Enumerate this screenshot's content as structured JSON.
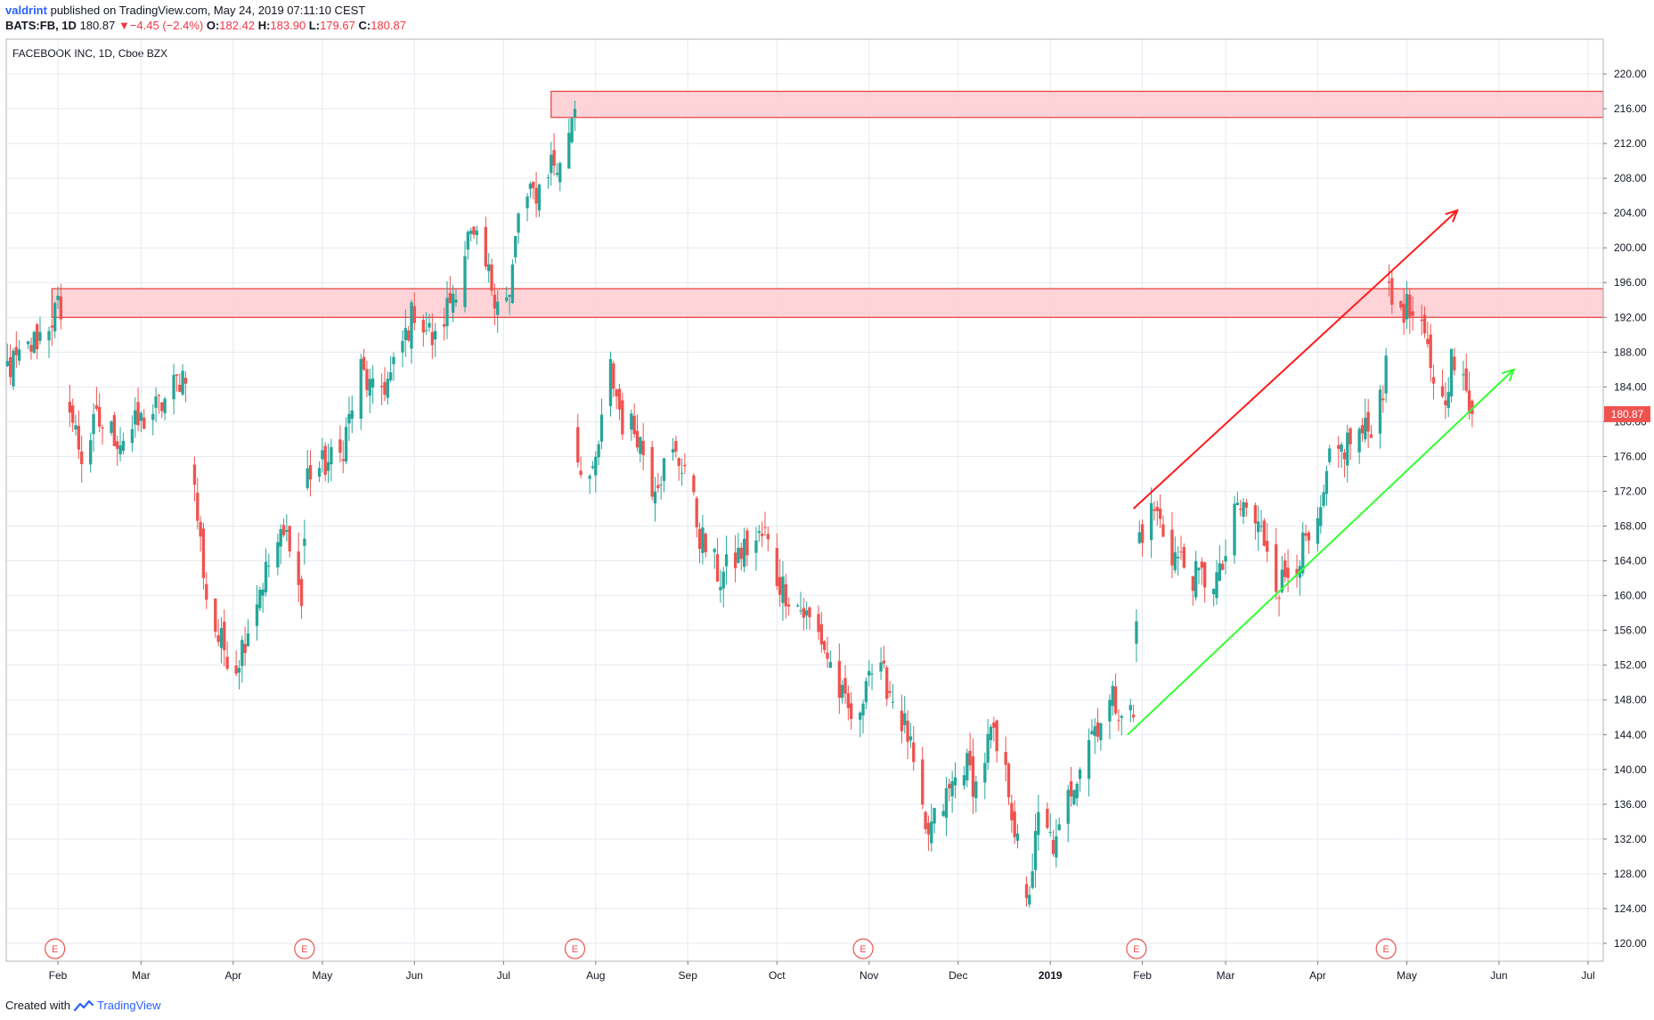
{
  "header": {
    "author": "valdrint",
    "published_text": "published on TradingView.com, May 24, 2019 07:11:10 CEST",
    "symbol": "BATS:FB, 1D",
    "last_price": "180.87",
    "change_arrow": "▼",
    "change": "−4.45 (−2.4%)",
    "open_label": "O:",
    "open": "182.42",
    "high_label": "H:",
    "high": "183.90",
    "low_label": "L:",
    "low": "179.67",
    "close_label": "C:",
    "close": "180.87"
  },
  "subtitle": "FACEBOOK INC, 1D, Cboe BZX",
  "footer": {
    "created_with": "Created with",
    "brand": "TradingView",
    "logo_icon": "tradingview-logo-icon"
  },
  "colors": {
    "up": "#26a69a",
    "down": "#ef5350",
    "zone_fill": "#ffcdd2",
    "zone_border": "#e53935",
    "red_arrow": "#ff1a1a",
    "green_arrow": "#33ff33",
    "grid": "#e6eaf0",
    "price_tag": "#ef5350"
  },
  "chart_data": {
    "type": "candlestick",
    "title": "FACEBOOK INC, 1D, Cboe BZX",
    "ylim": [
      118,
      222
    ],
    "y_ticks": [
      "220.00",
      "216.00",
      "212.00",
      "208.00",
      "204.00",
      "200.00",
      "196.00",
      "192.00",
      "188.00",
      "184.00",
      "180.00",
      "176.00",
      "172.00",
      "168.00",
      "164.00",
      "160.00",
      "156.00",
      "152.00",
      "148.00",
      "144.00",
      "140.00",
      "136.00",
      "132.00",
      "128.00",
      "124.00",
      "120.00"
    ],
    "x_ticks": [
      {
        "label": "Feb",
        "date": "2018-02-01"
      },
      {
        "label": "Mar",
        "date": "2018-03-01"
      },
      {
        "label": "Apr",
        "date": "2018-04-01"
      },
      {
        "label": "May",
        "date": "2018-05-01"
      },
      {
        "label": "Jun",
        "date": "2018-06-01"
      },
      {
        "label": "Jul",
        "date": "2018-07-01"
      },
      {
        "label": "Aug",
        "date": "2018-08-01"
      },
      {
        "label": "Sep",
        "date": "2018-09-01"
      },
      {
        "label": "Oct",
        "date": "2018-10-01"
      },
      {
        "label": "Nov",
        "date": "2018-11-01"
      },
      {
        "label": "Dec",
        "date": "2018-12-01"
      },
      {
        "label": "2019",
        "date": "2019-01-01"
      },
      {
        "label": "Feb",
        "date": "2019-02-01"
      },
      {
        "label": "Mar",
        "date": "2019-03-01"
      },
      {
        "label": "Apr",
        "date": "2019-04-01"
      },
      {
        "label": "May",
        "date": "2019-05-01"
      },
      {
        "label": "Jun",
        "date": "2019-06-01"
      },
      {
        "label": "Jul",
        "date": "2019-07-01"
      }
    ],
    "last_price_tag": "180.87",
    "earnings_markers": [
      {
        "label": "E",
        "date": "2018-01-31"
      },
      {
        "label": "E",
        "date": "2018-04-25"
      },
      {
        "label": "E",
        "date": "2018-07-25"
      },
      {
        "label": "E",
        "date": "2018-10-30"
      },
      {
        "label": "E",
        "date": "2019-01-30"
      },
      {
        "label": "E",
        "date": "2019-04-24"
      }
    ],
    "zones": [
      {
        "from_date": "2018-01-30",
        "price_low": 192.0,
        "price_high": 195.3
      },
      {
        "from_date": "2018-07-17",
        "price_low": 215.0,
        "price_high": 218.0
      }
    ],
    "arrows": [
      {
        "color": "red",
        "from": {
          "date": "2019-01-29",
          "price": 170.0
        },
        "to": {
          "date": "2019-05-18",
          "price": 204.3
        }
      },
      {
        "color": "green",
        "from": {
          "date": "2019-01-27",
          "price": 144.0
        },
        "to": {
          "date": "2019-06-06",
          "price": 186.0
        }
      }
    ],
    "anchors": [
      {
        "date": "2018-01-08",
        "close": 185
      },
      {
        "date": "2018-01-19",
        "close": 187
      },
      {
        "date": "2018-01-26",
        "close": 190
      },
      {
        "date": "2018-02-01",
        "close": 193
      },
      {
        "date": "2018-02-06",
        "close": 180
      },
      {
        "date": "2018-02-09",
        "close": 176
      },
      {
        "date": "2018-02-14",
        "close": 180
      },
      {
        "date": "2018-02-22",
        "close": 178
      },
      {
        "date": "2018-03-01",
        "close": 180
      },
      {
        "date": "2018-03-08",
        "close": 182
      },
      {
        "date": "2018-03-16",
        "close": 186
      },
      {
        "date": "2018-03-19",
        "close": 172
      },
      {
        "date": "2018-03-23",
        "close": 160
      },
      {
        "date": "2018-03-27",
        "close": 155
      },
      {
        "date": "2018-04-02",
        "close": 152
      },
      {
        "date": "2018-04-10",
        "close": 161
      },
      {
        "date": "2018-04-16",
        "close": 166
      },
      {
        "date": "2018-04-20",
        "close": 167
      },
      {
        "date": "2018-04-24",
        "close": 159
      },
      {
        "date": "2018-04-26",
        "close": 174
      },
      {
        "date": "2018-05-07",
        "close": 176
      },
      {
        "date": "2018-05-14",
        "close": 186
      },
      {
        "date": "2018-05-18",
        "close": 183
      },
      {
        "date": "2018-05-24",
        "close": 185
      },
      {
        "date": "2018-06-01",
        "close": 193
      },
      {
        "date": "2018-06-08",
        "close": 189
      },
      {
        "date": "2018-06-15",
        "close": 196
      },
      {
        "date": "2018-06-19",
        "close": 201
      },
      {
        "date": "2018-06-22",
        "close": 200
      },
      {
        "date": "2018-06-28",
        "close": 195
      },
      {
        "date": "2018-07-03",
        "close": 194
      },
      {
        "date": "2018-07-06",
        "close": 204
      },
      {
        "date": "2018-07-13",
        "close": 207
      },
      {
        "date": "2018-07-17",
        "close": 210
      },
      {
        "date": "2018-07-20",
        "close": 209
      },
      {
        "date": "2018-07-25",
        "close": 217
      },
      {
        "date": "2018-07-26",
        "close": 176
      },
      {
        "date": "2018-07-31",
        "close": 173
      },
      {
        "date": "2018-08-06",
        "close": 186
      },
      {
        "date": "2018-08-10",
        "close": 180
      },
      {
        "date": "2018-08-15",
        "close": 179
      },
      {
        "date": "2018-08-20",
        "close": 173
      },
      {
        "date": "2018-08-27",
        "close": 176
      },
      {
        "date": "2018-08-31",
        "close": 175
      },
      {
        "date": "2018-09-05",
        "close": 167
      },
      {
        "date": "2018-09-12",
        "close": 162
      },
      {
        "date": "2018-09-19",
        "close": 165
      },
      {
        "date": "2018-09-27",
        "close": 167
      },
      {
        "date": "2018-10-01",
        "close": 162
      },
      {
        "date": "2018-10-10",
        "close": 158
      },
      {
        "date": "2018-10-16",
        "close": 155
      },
      {
        "date": "2018-10-24",
        "close": 147
      },
      {
        "date": "2018-10-29",
        "close": 145
      },
      {
        "date": "2018-10-31",
        "close": 152
      },
      {
        "date": "2018-11-07",
        "close": 150
      },
      {
        "date": "2018-11-14",
        "close": 144
      },
      {
        "date": "2018-11-20",
        "close": 132
      },
      {
        "date": "2018-11-26",
        "close": 136
      },
      {
        "date": "2018-12-03",
        "close": 141
      },
      {
        "date": "2018-12-07",
        "close": 138
      },
      {
        "date": "2018-12-12",
        "close": 144
      },
      {
        "date": "2018-12-18",
        "close": 138
      },
      {
        "date": "2018-12-24",
        "close": 124
      },
      {
        "date": "2018-12-28",
        "close": 134
      },
      {
        "date": "2019-01-03",
        "close": 131
      },
      {
        "date": "2019-01-08",
        "close": 138
      },
      {
        "date": "2019-01-14",
        "close": 144
      },
      {
        "date": "2019-01-22",
        "close": 148
      },
      {
        "date": "2019-01-29",
        "close": 146
      },
      {
        "date": "2019-01-31",
        "close": 167
      },
      {
        "date": "2019-02-05",
        "close": 170
      },
      {
        "date": "2019-02-11",
        "close": 165
      },
      {
        "date": "2019-02-19",
        "close": 162
      },
      {
        "date": "2019-02-27",
        "close": 162
      },
      {
        "date": "2019-03-05",
        "close": 170
      },
      {
        "date": "2019-03-08",
        "close": 170
      },
      {
        "date": "2019-03-15",
        "close": 166
      },
      {
        "date": "2019-03-19",
        "close": 161
      },
      {
        "date": "2019-03-26",
        "close": 165
      },
      {
        "date": "2019-04-01",
        "close": 167
      },
      {
        "date": "2019-04-05",
        "close": 175
      },
      {
        "date": "2019-04-12",
        "close": 178
      },
      {
        "date": "2019-04-18",
        "close": 179
      },
      {
        "date": "2019-04-23",
        "close": 184
      },
      {
        "date": "2019-04-25",
        "close": 194
      },
      {
        "date": "2019-05-01",
        "close": 193
      },
      {
        "date": "2019-05-07",
        "close": 189
      },
      {
        "date": "2019-05-13",
        "close": 182
      },
      {
        "date": "2019-05-16",
        "close": 187
      },
      {
        "date": "2019-05-20",
        "close": 184
      },
      {
        "date": "2019-05-23",
        "close": 180.87
      }
    ]
  }
}
